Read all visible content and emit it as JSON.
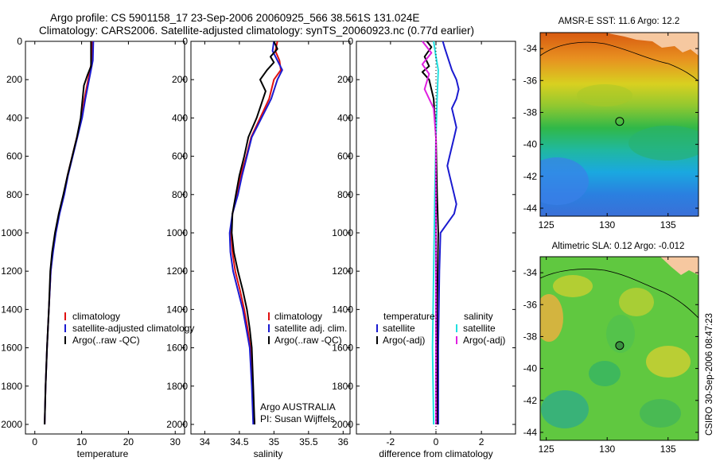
{
  "header": {
    "line1": "Argo profile: CS 5901158_17 23-Sep-2006 20060925_566 38.561S 131.024E",
    "line2": "Climatology: CARS2006. Satellite-adjusted climatology: synTS_20060923.nc (0.77d earlier)"
  },
  "side_label": "CSIRO 30-Sep-2006 08:47:23",
  "colors": {
    "climatology": "#e01010",
    "satellite": "#1a1ad0",
    "argo": "#000000",
    "argo_salinity_diff": "#e020e0",
    "satellite_salinity_diff": "#20e0e0",
    "land": "#f6c8a0"
  },
  "chart_data": [
    {
      "type": "line",
      "id": "temperature",
      "xlabel": "temperature",
      "ylabel": "",
      "xlim": [
        -2,
        32
      ],
      "ylim": [
        2050,
        0
      ],
      "xticks": [
        0,
        10,
        20,
        30
      ],
      "yticks": [
        0,
        200,
        400,
        600,
        800,
        1000,
        1200,
        1400,
        1600,
        1800,
        2000
      ],
      "legend": [
        "climatology",
        "satellite-adjusted climatology",
        "Argo(..raw -QC)"
      ],
      "series": [
        {
          "name": "climatology",
          "color": "#e01010",
          "points": [
            [
              12.3,
              0
            ],
            [
              12.2,
              100
            ],
            [
              11.8,
              150
            ],
            [
              11.4,
              200
            ],
            [
              10.6,
              300
            ],
            [
              10.0,
              400
            ],
            [
              9.0,
              500
            ],
            [
              8.0,
              600
            ],
            [
              7.0,
              700
            ],
            [
              6.2,
              800
            ],
            [
              5.2,
              900
            ],
            [
              4.4,
              1000
            ],
            [
              3.8,
              1100
            ],
            [
              3.4,
              1200
            ],
            [
              3.0,
              1400
            ],
            [
              2.6,
              1600
            ],
            [
              2.3,
              1800
            ],
            [
              2.1,
              2000
            ]
          ]
        },
        {
          "name": "satellite-adjusted climatology",
          "color": "#1a1ad0",
          "points": [
            [
              12.5,
              0
            ],
            [
              12.4,
              100
            ],
            [
              12.0,
              150
            ],
            [
              11.6,
              200
            ],
            [
              10.8,
              300
            ],
            [
              10.1,
              400
            ],
            [
              9.1,
              500
            ],
            [
              8.1,
              600
            ],
            [
              7.1,
              700
            ],
            [
              6.3,
              800
            ],
            [
              5.3,
              900
            ],
            [
              4.5,
              1000
            ],
            [
              3.9,
              1100
            ],
            [
              3.4,
              1200
            ],
            [
              3.0,
              1400
            ],
            [
              2.6,
              1600
            ],
            [
              2.3,
              1800
            ],
            [
              2.1,
              2000
            ]
          ]
        },
        {
          "name": "Argo(..raw -QC)",
          "color": "#000000",
          "points": [
            [
              12.0,
              0
            ],
            [
              12.0,
              130
            ],
            [
              11.2,
              180
            ],
            [
              10.5,
              230
            ],
            [
              10.2,
              300
            ],
            [
              9.8,
              400
            ],
            [
              9.0,
              500
            ],
            [
              8.0,
              600
            ],
            [
              7.0,
              700
            ],
            [
              6.1,
              800
            ],
            [
              5.1,
              900
            ],
            [
              4.3,
              1000
            ],
            [
              3.7,
              1100
            ],
            [
              3.3,
              1200
            ],
            [
              3.0,
              1400
            ],
            [
              2.6,
              1600
            ],
            [
              2.3,
              1800
            ],
            [
              2.1,
              2000
            ]
          ]
        }
      ]
    },
    {
      "type": "line",
      "id": "salinity",
      "xlabel": "salinity",
      "ylabel": "",
      "xlim": [
        33.8,
        36.1
      ],
      "ylim": [
        2050,
        0
      ],
      "xticks": [
        34,
        34.5,
        35,
        35.5,
        36
      ],
      "yticks": [
        0,
        200,
        400,
        600,
        800,
        1000,
        1200,
        1400,
        1600,
        1800,
        2000
      ],
      "legend": [
        "climatology",
        "satellite adj. clim.",
        "Argo(..raw -QC)"
      ],
      "annotation": [
        "Argo AUSTRALIA",
        "PI: Susan Wijffels"
      ],
      "series": [
        {
          "name": "climatology",
          "color": "#e01010",
          "points": [
            [
              35.05,
              0
            ],
            [
              35.02,
              50
            ],
            [
              35.08,
              100
            ],
            [
              35.1,
              150
            ],
            [
              35.0,
              200
            ],
            [
              34.93,
              300
            ],
            [
              34.8,
              400
            ],
            [
              34.67,
              500
            ],
            [
              34.6,
              600
            ],
            [
              34.52,
              700
            ],
            [
              34.47,
              800
            ],
            [
              34.4,
              900
            ],
            [
              34.38,
              1000
            ],
            [
              34.4,
              1100
            ],
            [
              34.44,
              1200
            ],
            [
              34.51,
              1300
            ],
            [
              34.57,
              1400
            ],
            [
              34.62,
              1500
            ],
            [
              34.66,
              1600
            ],
            [
              34.69,
              1800
            ],
            [
              34.72,
              2000
            ]
          ]
        },
        {
          "name": "satellite adj. clim.",
          "color": "#1a1ad0",
          "points": [
            [
              35.0,
              0
            ],
            [
              34.98,
              50
            ],
            [
              35.05,
              100
            ],
            [
              35.12,
              150
            ],
            [
              35.05,
              200
            ],
            [
              34.96,
              300
            ],
            [
              34.82,
              400
            ],
            [
              34.68,
              500
            ],
            [
              34.61,
              600
            ],
            [
              34.54,
              700
            ],
            [
              34.48,
              800
            ],
            [
              34.4,
              900
            ],
            [
              34.36,
              1000
            ],
            [
              34.37,
              1100
            ],
            [
              34.41,
              1200
            ],
            [
              34.48,
              1300
            ],
            [
              34.55,
              1400
            ],
            [
              34.6,
              1500
            ],
            [
              34.65,
              1600
            ],
            [
              34.68,
              1800
            ],
            [
              34.7,
              2000
            ]
          ]
        },
        {
          "name": "Argo(..raw -QC)",
          "color": "#000000",
          "points": [
            [
              35.0,
              0
            ],
            [
              35.05,
              40
            ],
            [
              34.95,
              80
            ],
            [
              35.0,
              110
            ],
            [
              34.9,
              150
            ],
            [
              34.8,
              200
            ],
            [
              34.88,
              260
            ],
            [
              34.75,
              400
            ],
            [
              34.63,
              500
            ],
            [
              34.57,
              600
            ],
            [
              34.5,
              700
            ],
            [
              34.45,
              800
            ],
            [
              34.4,
              900
            ],
            [
              34.39,
              1000
            ],
            [
              34.42,
              1100
            ],
            [
              34.48,
              1200
            ],
            [
              34.55,
              1300
            ],
            [
              34.61,
              1400
            ],
            [
              34.65,
              1500
            ],
            [
              34.68,
              1600
            ],
            [
              34.7,
              1800
            ],
            [
              34.72,
              2000
            ]
          ]
        }
      ]
    },
    {
      "type": "line",
      "id": "difference",
      "xlabel": "difference from climatology",
      "ylabel": "",
      "xlim": [
        -3.5,
        3.5
      ],
      "ylim": [
        2050,
        0
      ],
      "xticks": [
        -2,
        0,
        2
      ],
      "yticks": [
        0,
        200,
        400,
        600,
        800,
        1000,
        1200,
        1400,
        1600,
        1800,
        2000
      ],
      "legend": {
        "temperature_header": "temperature",
        "salinity_header": "salinity",
        "items": [
          "satellite",
          "Argo(-adj)",
          "satellite",
          "Argo(-adj)"
        ]
      },
      "series": [
        {
          "name": "temperature satellite",
          "color": "#1a1ad0",
          "points": [
            [
              0.3,
              0
            ],
            [
              0.4,
              40
            ],
            [
              0.7,
              150
            ],
            [
              0.9,
              200
            ],
            [
              1.0,
              250
            ],
            [
              0.9,
              300
            ],
            [
              0.7,
              350
            ],
            [
              0.8,
              400
            ],
            [
              0.9,
              450
            ],
            [
              0.8,
              500
            ],
            [
              0.6,
              600
            ],
            [
              0.5,
              650
            ],
            [
              0.6,
              700
            ],
            [
              0.7,
              750
            ],
            [
              0.8,
              800
            ],
            [
              0.9,
              850
            ],
            [
              0.8,
              900
            ],
            [
              0.5,
              950
            ],
            [
              0.2,
              1000
            ],
            [
              0.15,
              1200
            ],
            [
              0.1,
              1600
            ],
            [
              0.1,
              2000
            ]
          ]
        },
        {
          "name": "temperature Argo(-adj)",
          "color": "#000000",
          "points": [
            [
              -0.4,
              0
            ],
            [
              -0.2,
              30
            ],
            [
              -0.5,
              80
            ],
            [
              -0.3,
              130
            ],
            [
              -0.6,
              160
            ],
            [
              -0.3,
              200
            ],
            [
              -0.1,
              300
            ],
            [
              0.0,
              500
            ],
            [
              0.05,
              800
            ],
            [
              0.1,
              1000
            ],
            [
              0.05,
              1400
            ],
            [
              0.05,
              2000
            ]
          ]
        },
        {
          "name": "salinity satellite",
          "color": "#20e0e0",
          "points": [
            [
              -0.1,
              0
            ],
            [
              0.0,
              80
            ],
            [
              0.1,
              150
            ],
            [
              0.05,
              300
            ],
            [
              0.0,
              500
            ],
            [
              -0.05,
              800
            ],
            [
              -0.1,
              1200
            ],
            [
              -0.15,
              1600
            ],
            [
              -0.1,
              2000
            ]
          ]
        },
        {
          "name": "salinity Argo(-adj)",
          "color": "#e020e0",
          "points": [
            [
              -0.6,
              0
            ],
            [
              -0.2,
              60
            ],
            [
              -0.6,
              120
            ],
            [
              -0.3,
              170
            ],
            [
              -0.5,
              250
            ],
            [
              -0.1,
              350
            ],
            [
              0.0,
              500
            ],
            [
              0.0,
              800
            ],
            [
              0.0,
              1200
            ],
            [
              0.0,
              2000
            ]
          ]
        }
      ]
    },
    {
      "type": "heatmap",
      "id": "sst_map",
      "title": "AMSR-E SST: 11.6 Argo: 12.2",
      "xlim": [
        124.5,
        137.5
      ],
      "ylim": [
        -44.5,
        -33
      ],
      "xticks": [
        125,
        130,
        135
      ],
      "yticks": [
        -34,
        -36,
        -38,
        -40,
        -42,
        -44
      ],
      "marker": {
        "lon": 131.024,
        "lat": -38.561
      }
    },
    {
      "type": "heatmap",
      "id": "sla_map",
      "title": "Altimetric SLA: 0.12 Argo: -0.012",
      "xlim": [
        124.5,
        137.5
      ],
      "ylim": [
        -44.5,
        -33
      ],
      "xticks": [
        125,
        130,
        135
      ],
      "yticks": [
        -34,
        -36,
        -38,
        -40,
        -42,
        -44
      ],
      "marker": {
        "lon": 131.024,
        "lat": -38.561
      }
    }
  ]
}
